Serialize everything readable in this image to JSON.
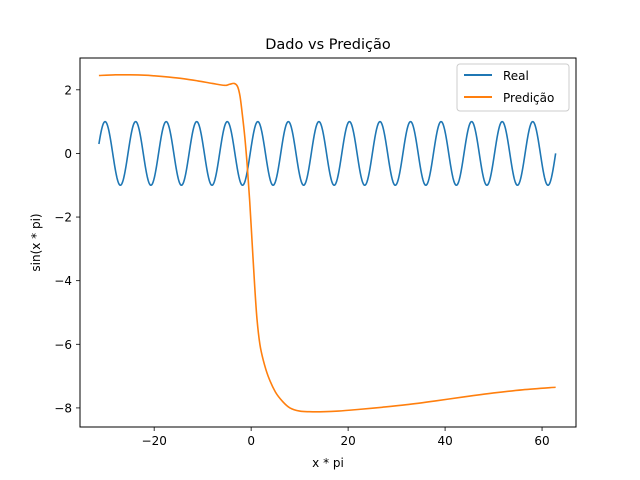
{
  "chart_data": {
    "type": "line",
    "title": "Dado vs Predição",
    "xlabel": "x * pi",
    "ylabel": "sin(x * pi)",
    "xlim": [
      -35.3,
      67.0
    ],
    "ylim": [
      -8.6,
      3.0
    ],
    "xticks": [
      -20,
      0,
      20,
      40,
      60
    ],
    "yticks": [
      -8,
      -6,
      -4,
      -2,
      0,
      2
    ],
    "xtick_labels": [
      "−20",
      "0",
      "20",
      "40",
      "60"
    ],
    "ytick_labels": [
      "−8",
      "−6",
      "−4",
      "−2",
      "0",
      "2"
    ],
    "grid": false,
    "legend_position": "top-right",
    "series": [
      {
        "name": "Real",
        "color": "#1f77b4",
        "function": "sin",
        "x_range": [
          -31.4,
          62.8
        ],
        "period": 6.3,
        "phase": 0.2,
        "amplitude": 1.0
      },
      {
        "name": "Predição",
        "color": "#ff7f0e",
        "x": [
          -31.4,
          -28,
          -25,
          -22,
          -20,
          -17,
          -14,
          -11,
          -8,
          -5.5,
          -4.5,
          -3.5,
          -2.8,
          -2.3,
          -1.8,
          -1.3,
          -0.8,
          -0.3,
          0.2,
          0.7,
          1.2,
          1.8,
          2.5,
          3.5,
          5,
          6.5,
          8,
          10,
          12,
          15,
          18,
          22,
          27,
          32,
          38,
          44,
          50,
          56,
          62.8
        ],
        "y": [
          2.45,
          2.47,
          2.47,
          2.46,
          2.44,
          2.4,
          2.35,
          2.28,
          2.2,
          2.14,
          2.17,
          2.2,
          2.1,
          1.8,
          1.2,
          0.5,
          -0.4,
          -1.5,
          -2.8,
          -4.1,
          -5.2,
          -6.0,
          -6.5,
          -7.0,
          -7.5,
          -7.8,
          -8.0,
          -8.1,
          -8.12,
          -8.12,
          -8.1,
          -8.05,
          -7.98,
          -7.9,
          -7.78,
          -7.65,
          -7.53,
          -7.43,
          -7.35
        ]
      }
    ]
  }
}
